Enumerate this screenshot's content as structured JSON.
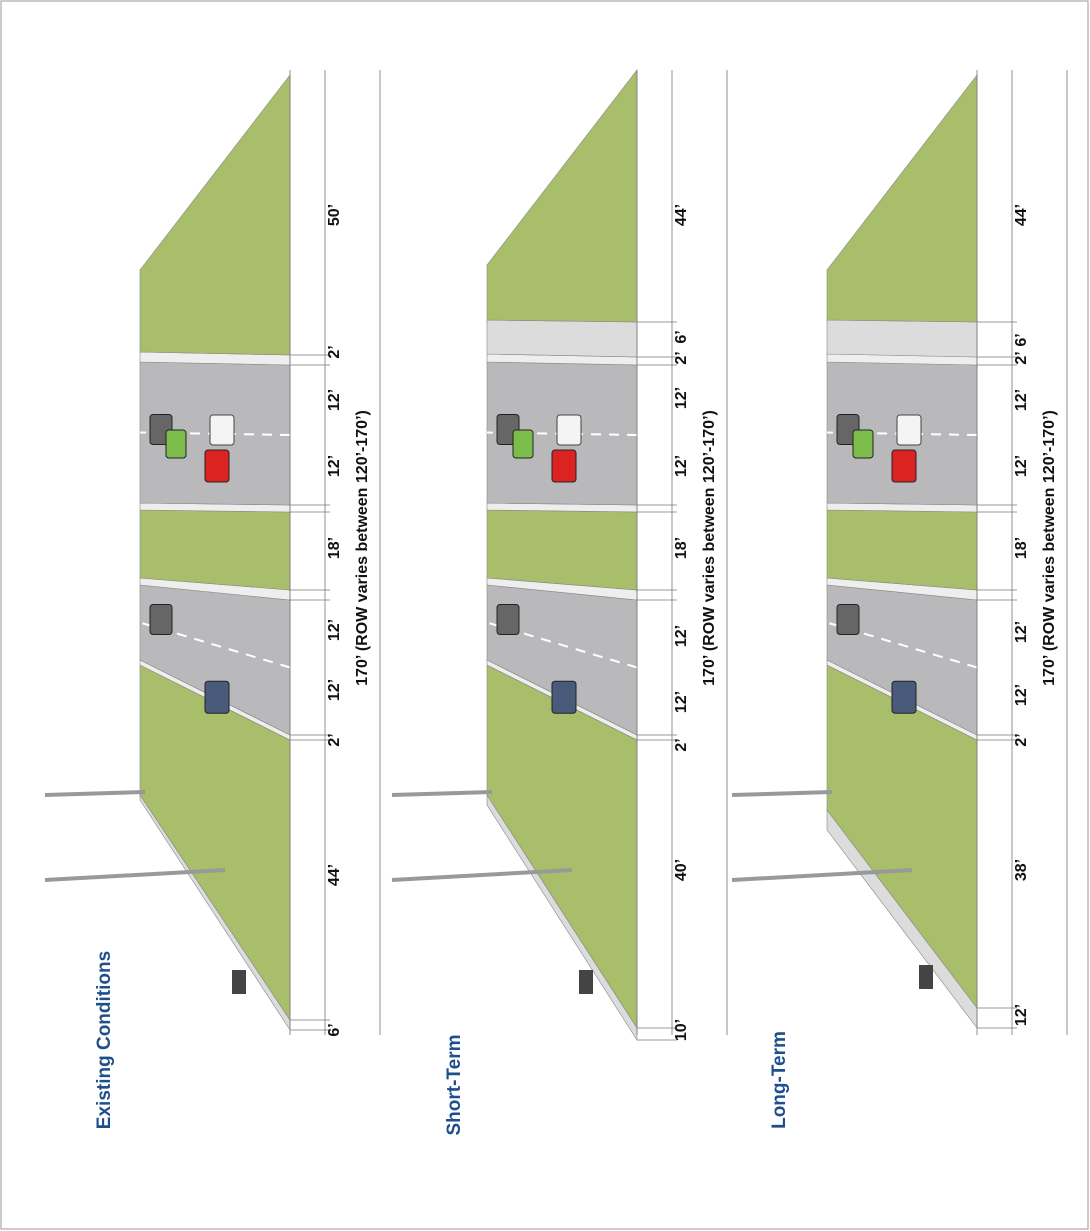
{
  "panels": [
    {
      "title": "Existing Conditions",
      "dimensions": [
        "6’",
        "44’",
        "2’",
        "12’",
        "12’",
        "18’",
        "12’",
        "12’",
        "2’",
        "50’"
      ],
      "total": "170’ (ROW varies between 120’-170’)"
    },
    {
      "title": "Short-Term",
      "dimensions": [
        "10’",
        "40’",
        "2’",
        "12’",
        "12’",
        "18’",
        "12’",
        "12’",
        "2’",
        "6’",
        "44’"
      ],
      "total": "170’ (ROW varies between 120’-170’)"
    },
    {
      "title": "Long-Term",
      "dimensions": [
        "12’",
        "38’",
        "2’",
        "12’",
        "12’",
        "18’",
        "12’",
        "12’",
        "2’",
        "6’",
        "44’"
      ],
      "total": "170’ (ROW varies between 120’-170’)"
    }
  ]
}
